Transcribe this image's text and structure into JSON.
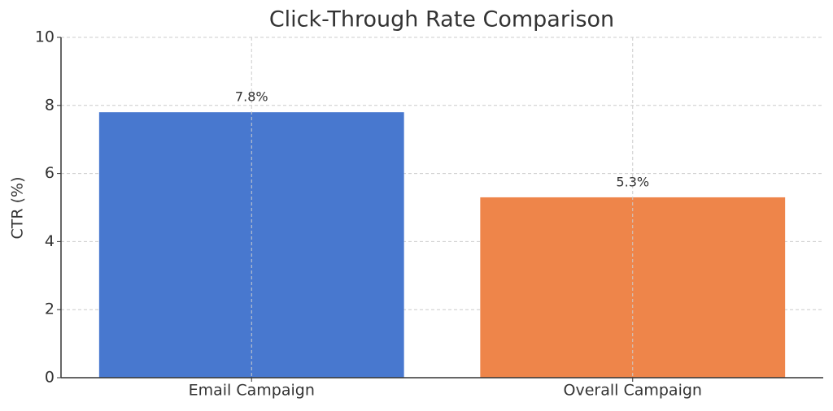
{
  "chart_data": {
    "type": "bar",
    "title": "Click-Through Rate Comparison",
    "y_label": "CTR (%)",
    "categories": [
      "Email Campaign",
      "Overall Campaign"
    ],
    "values": [
      7.8,
      5.3
    ],
    "value_labels": [
      "7.8%",
      "5.3%"
    ],
    "colors": [
      "#4878cf",
      "#ee854a"
    ],
    "ylim": [
      0,
      10
    ],
    "yticks": [
      0,
      2,
      4,
      6,
      8,
      10
    ],
    "grid": true
  }
}
